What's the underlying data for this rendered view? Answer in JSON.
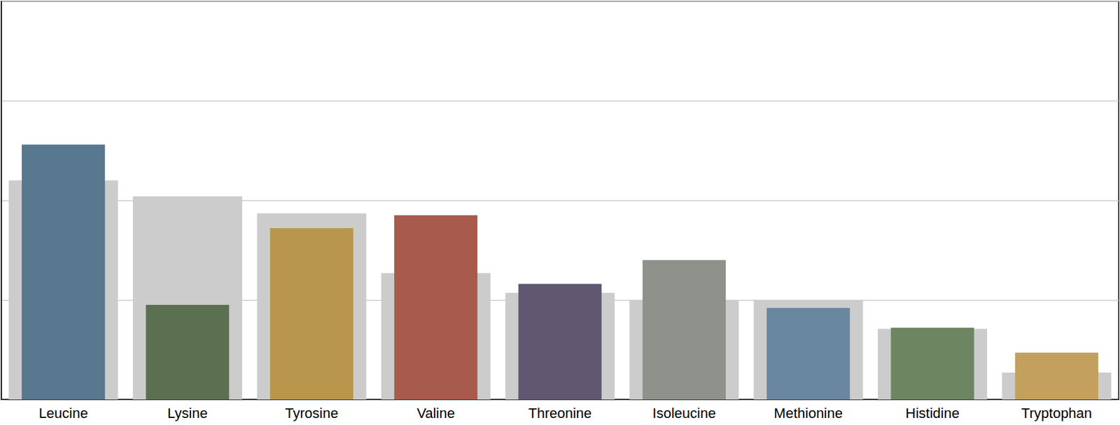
{
  "chart_data": {
    "type": "bar",
    "categories": [
      "Leucine",
      "Lysine",
      "Tyrosine",
      "Valine",
      "Threonine",
      "Isoleucine",
      "Methionine",
      "Histidine",
      "Tryptophan"
    ],
    "series": [
      {
        "color": "#cccccc",
        "values": [
          2.2,
          2.04,
          1.87,
          1.27,
          1.07,
          1.0,
          1.0,
          0.71,
          0.27
        ]
      },
      {
        "colors": [
          "#57788f",
          "#5b7050",
          "#b8964c",
          "#a85b4d",
          "#5f5870",
          "#8e928b",
          "#6a87a0",
          "#6d8561",
          "#c4a05e"
        ],
        "values": [
          2.56,
          0.95,
          1.72,
          1.85,
          1.16,
          1.4,
          0.92,
          0.72,
          0.47
        ]
      }
    ],
    "ylim": [
      0,
      4
    ],
    "yticks": [
      0,
      1,
      2,
      3,
      4
    ],
    "grid": true,
    "tick_labels": "x"
  }
}
